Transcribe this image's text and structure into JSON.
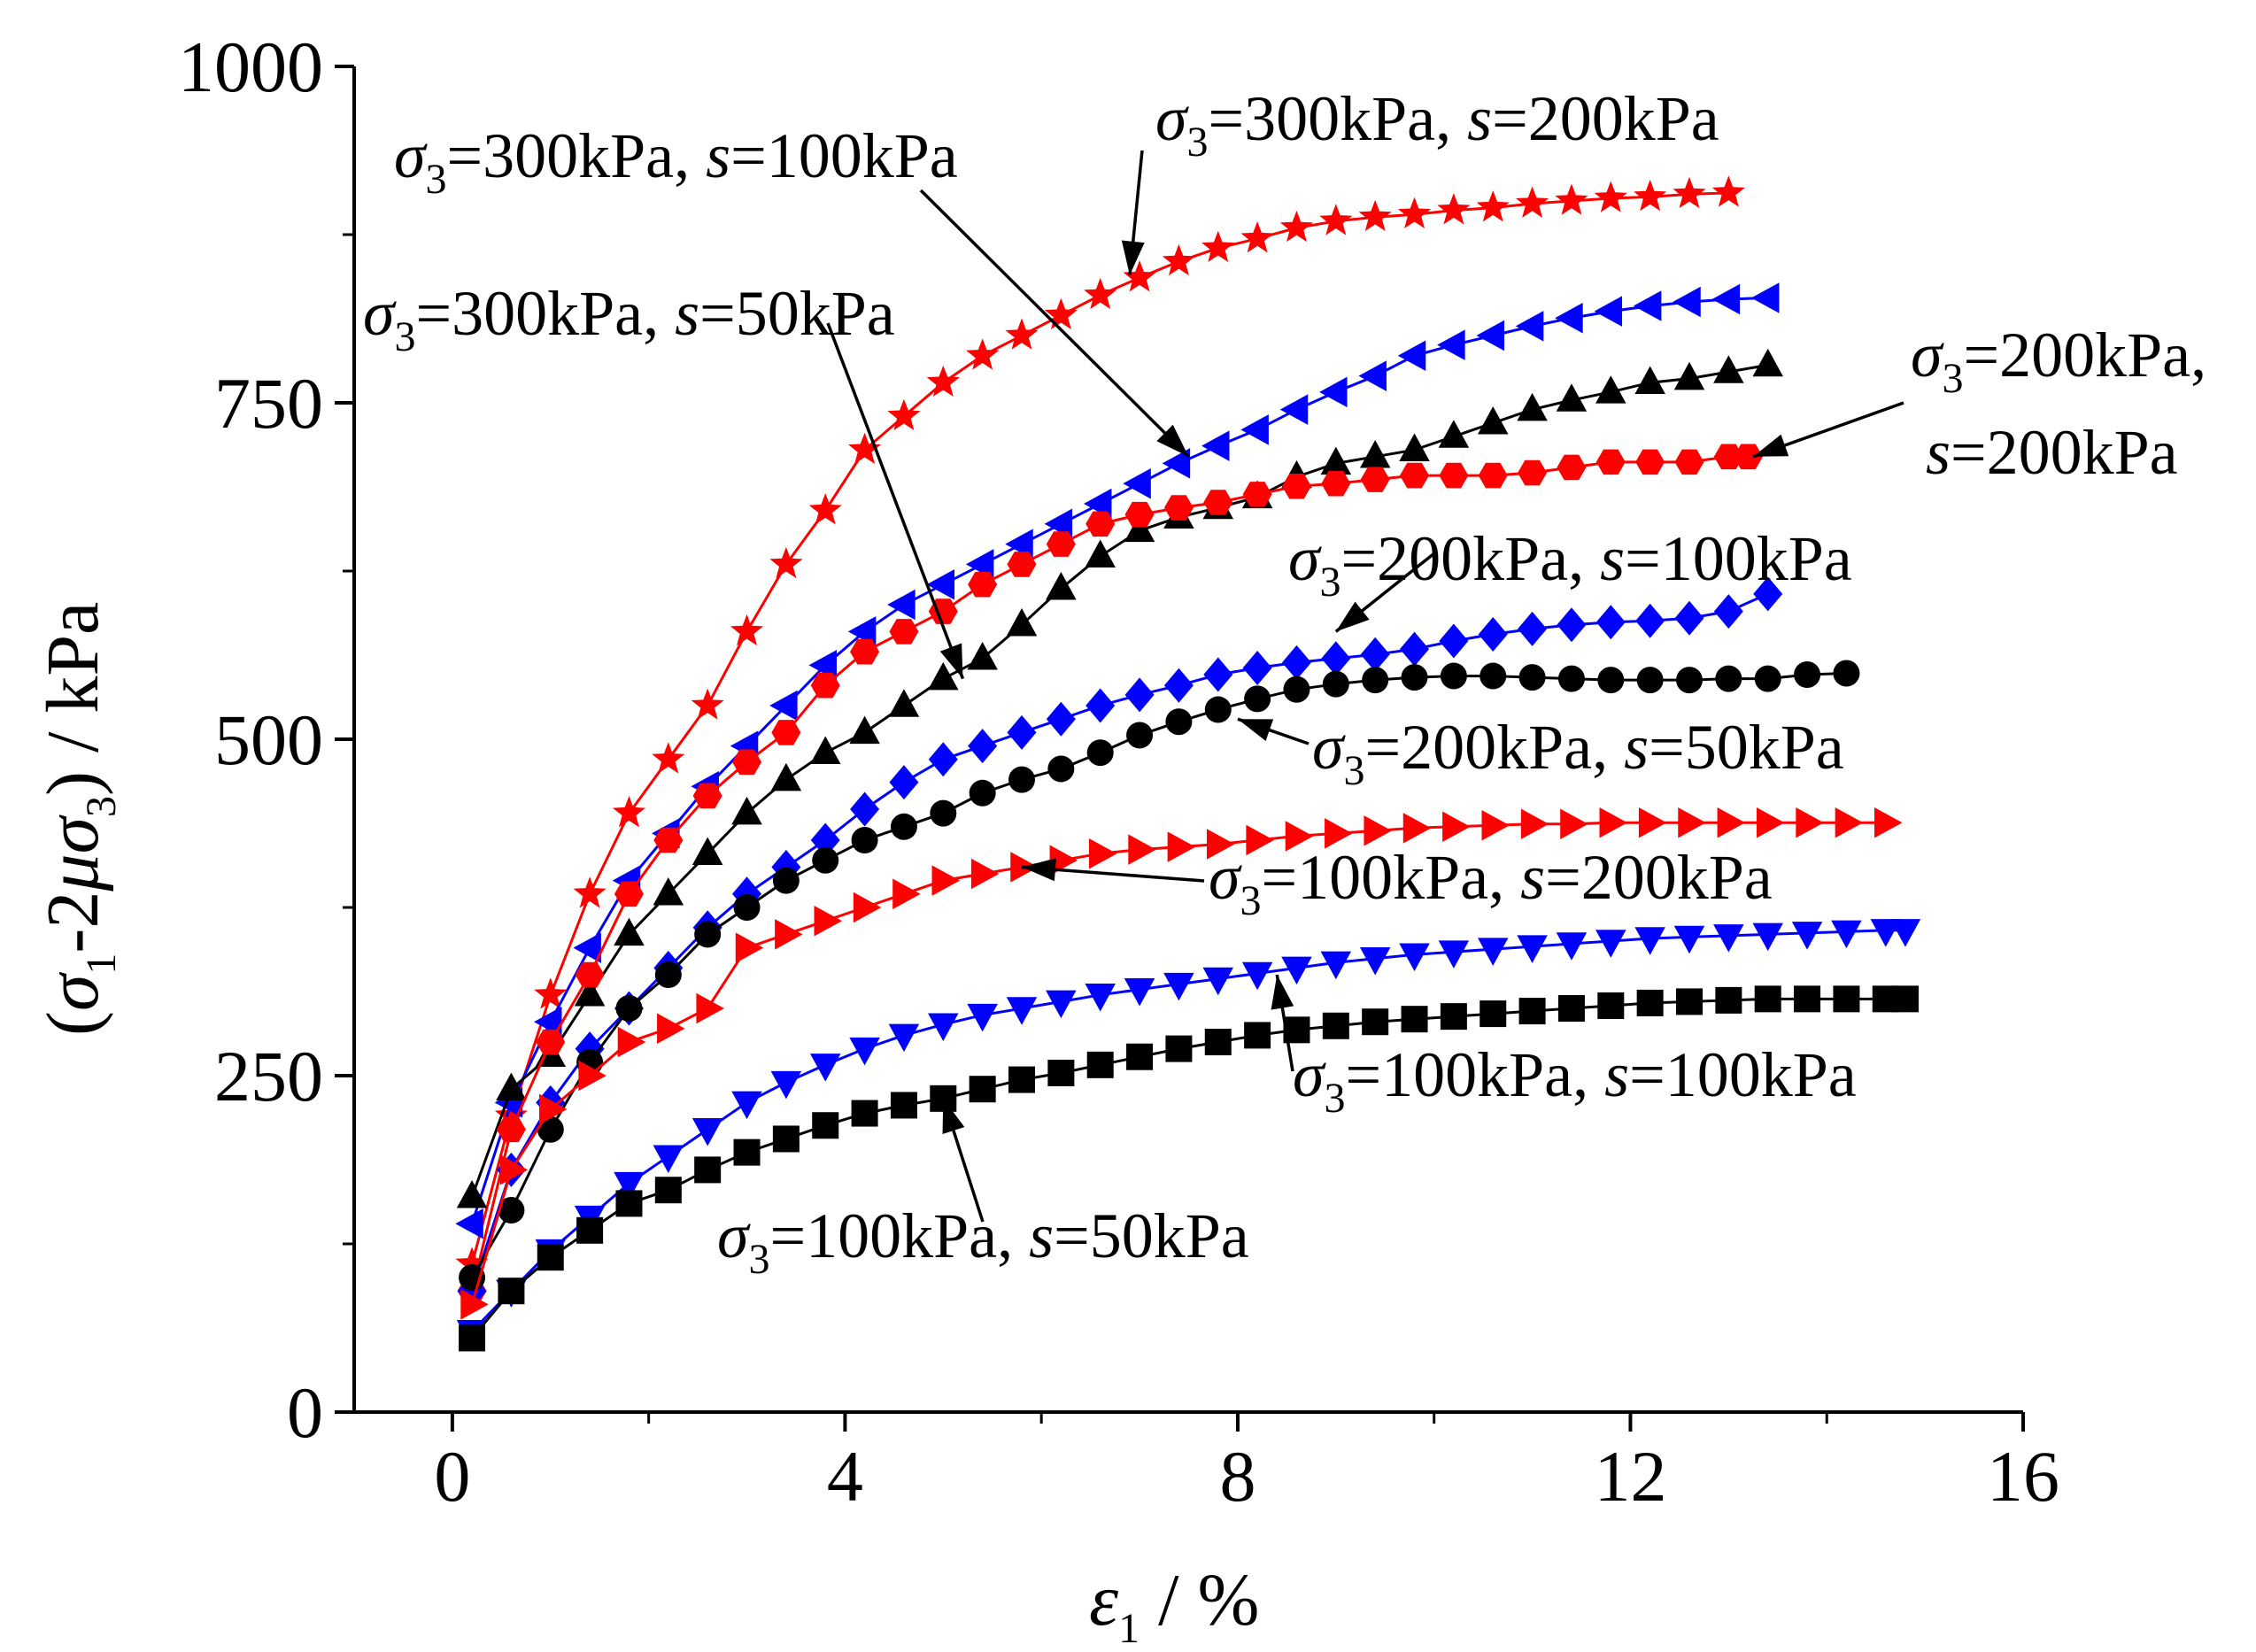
{
  "chart_data": {
    "type": "line",
    "title": "",
    "xlabel": {
      "symbol": "ε",
      "sub": "1",
      "unit": " / %"
    },
    "ylabel": {
      "open": "(",
      "s1": "σ",
      "s1sub": "1",
      "mid": "-2",
      "mu": "μ",
      "s3": "σ",
      "s3sub": "3",
      "close": ") / kPa"
    },
    "xlim": [
      -1,
      16
    ],
    "ylim": [
      0,
      1000
    ],
    "xticks": [
      0,
      4,
      8,
      12,
      16
    ],
    "yticks": [
      0,
      250,
      500,
      750,
      1000
    ],
    "grid": false,
    "colors": {
      "red": "#ff0000",
      "blue": "#0000ff",
      "black": "#000000"
    },
    "series": [
      {
        "name": "σ3=300kPa, s=200kPa",
        "color": "#ff0000",
        "marker": "star",
        "x": [
          0.2,
          0.6,
          1.0,
          1.4,
          1.8,
          2.2,
          2.6,
          3.0,
          3.4,
          3.8,
          4.2,
          4.6,
          5.0,
          5.4,
          5.8,
          6.2,
          6.6,
          7.0,
          7.4,
          7.8,
          8.2,
          8.6,
          9.0,
          9.4,
          9.8,
          10.2,
          10.6,
          11.0,
          11.4,
          11.8,
          12.2,
          12.6,
          13.0
        ],
        "y": [
          110,
          220,
          310,
          385,
          445,
          485,
          525,
          580,
          630,
          670,
          715,
          740,
          765,
          785,
          800,
          815,
          830,
          843,
          855,
          865,
          872,
          880,
          885,
          888,
          890,
          893,
          895,
          898,
          900,
          902,
          903,
          905,
          906
        ]
      },
      {
        "name": "σ3=300kPa, s=100kPa",
        "color": "#0000ff",
        "marker": "triangle-left",
        "x": [
          0.2,
          0.6,
          1.0,
          1.4,
          1.8,
          2.2,
          2.6,
          3.0,
          3.4,
          3.8,
          4.2,
          4.6,
          5.0,
          5.4,
          5.8,
          6.2,
          6.6,
          7.0,
          7.4,
          7.8,
          8.2,
          8.6,
          9.0,
          9.4,
          9.8,
          10.2,
          10.6,
          11.0,
          11.4,
          11.8,
          12.2,
          12.6,
          13.0,
          13.4
        ],
        "y": [
          140,
          230,
          290,
          345,
          395,
          430,
          465,
          495,
          525,
          555,
          580,
          600,
          615,
          630,
          645,
          660,
          675,
          690,
          705,
          718,
          730,
          745,
          758,
          770,
          785,
          793,
          800,
          807,
          813,
          818,
          822,
          825,
          827,
          828
        ]
      },
      {
        "name": "σ3=300kPa, s=50kPa",
        "color": "#000000",
        "marker": "triangle-up",
        "x": [
          0.2,
          0.6,
          1.0,
          1.4,
          1.8,
          2.2,
          2.6,
          3.0,
          3.4,
          3.8,
          4.2,
          4.6,
          5.0,
          5.4,
          5.8,
          6.2,
          6.6,
          7.0,
          7.4,
          7.8,
          8.2,
          8.6,
          9.0,
          9.4,
          9.8,
          10.2,
          10.6,
          11.0,
          11.4,
          11.8,
          12.2,
          12.6,
          13.0,
          13.4
        ],
        "y": [
          160,
          240,
          265,
          310,
          355,
          385,
          415,
          445,
          470,
          490,
          505,
          525,
          545,
          560,
          585,
          612,
          636,
          655,
          665,
          672,
          680,
          695,
          705,
          710,
          715,
          725,
          735,
          745,
          752,
          758,
          765,
          768,
          773,
          778
        ]
      },
      {
        "name": "σ3=200kPa, s=200kPa",
        "color": "#ff0000",
        "marker": "hexagon",
        "x": [
          0.2,
          0.6,
          1.0,
          1.4,
          1.8,
          2.2,
          2.6,
          3.0,
          3.4,
          3.8,
          4.2,
          4.6,
          5.0,
          5.4,
          5.8,
          6.2,
          6.6,
          7.0,
          7.4,
          7.8,
          8.2,
          8.6,
          9.0,
          9.4,
          9.8,
          10.2,
          10.6,
          11.0,
          11.4,
          11.8,
          12.2,
          12.6,
          13.0,
          13.2
        ],
        "y": [
          90,
          210,
          275,
          325,
          385,
          425,
          458,
          483,
          505,
          540,
          565,
          580,
          595,
          615,
          630,
          645,
          660,
          667,
          672,
          676,
          682,
          688,
          690,
          693,
          696,
          696,
          696,
          698,
          702,
          706,
          706,
          706,
          710,
          710
        ]
      },
      {
        "name": "σ3=200kPa, s=100kPa",
        "color": "#0000ff",
        "marker": "diamond",
        "x": [
          0.2,
          0.6,
          1.0,
          1.4,
          1.8,
          2.2,
          2.6,
          3.0,
          3.4,
          3.8,
          4.2,
          4.6,
          5.0,
          5.4,
          5.8,
          6.2,
          6.6,
          7.0,
          7.4,
          7.8,
          8.2,
          8.6,
          9.0,
          9.4,
          9.8,
          10.2,
          10.6,
          11.0,
          11.4,
          11.8,
          12.2,
          12.6,
          13.0,
          13.4
        ],
        "y": [
          90,
          180,
          230,
          270,
          300,
          330,
          360,
          385,
          405,
          425,
          448,
          468,
          485,
          495,
          505,
          515,
          525,
          533,
          540,
          548,
          553,
          557,
          560,
          563,
          567,
          573,
          578,
          582,
          585,
          587,
          588,
          590,
          595,
          608
        ]
      },
      {
        "name": "σ3=200kPa, s=50kPa",
        "color": "#000000",
        "marker": "circle",
        "x": [
          0.2,
          0.6,
          1.0,
          1.4,
          1.8,
          2.2,
          2.6,
          3.0,
          3.4,
          3.8,
          4.2,
          4.6,
          5.0,
          5.4,
          5.8,
          6.2,
          6.6,
          7.0,
          7.4,
          7.8,
          8.2,
          8.6,
          9.0,
          9.4,
          9.8,
          10.2,
          10.6,
          11.0,
          11.4,
          11.8,
          12.2,
          12.6,
          13.0,
          13.4,
          13.8,
          14.2
        ],
        "y": [
          100,
          150,
          210,
          260,
          300,
          325,
          355,
          375,
          395,
          410,
          425,
          435,
          445,
          460,
          470,
          478,
          490,
          503,
          513,
          522,
          530,
          537,
          541,
          544,
          546,
          547,
          547,
          546,
          545,
          544,
          544,
          544,
          545,
          545,
          548,
          549
        ]
      },
      {
        "name": "σ3=100kPa, s=200kPa",
        "color": "#ff0000",
        "marker": "triangle-right",
        "x": [
          0.2,
          0.6,
          1.0,
          1.4,
          1.8,
          2.2,
          2.6,
          3.0,
          3.4,
          3.8,
          4.2,
          4.6,
          5.0,
          5.4,
          5.8,
          6.2,
          6.6,
          7.0,
          7.4,
          7.8,
          8.2,
          8.6,
          9.0,
          9.4,
          9.8,
          10.2,
          10.6,
          11.0,
          11.4,
          11.8,
          12.2,
          12.6,
          13.0,
          13.4,
          13.8,
          14.2,
          14.6
        ],
        "y": [
          80,
          180,
          225,
          250,
          275,
          285,
          300,
          345,
          355,
          365,
          375,
          385,
          395,
          400,
          405,
          410,
          415,
          418,
          420,
          422,
          425,
          428,
          430,
          432,
          434,
          435,
          436,
          437,
          437,
          438,
          438,
          438,
          438,
          438,
          438,
          438,
          438
        ]
      },
      {
        "name": "σ3=100kPa, s=100kPa",
        "color": "#0000ff",
        "marker": "triangle-down",
        "x": [
          0.2,
          0.6,
          1.0,
          1.4,
          1.8,
          2.2,
          2.6,
          3.0,
          3.4,
          3.8,
          4.2,
          4.6,
          5.0,
          5.4,
          5.8,
          6.2,
          6.6,
          7.0,
          7.4,
          7.8,
          8.2,
          8.6,
          9.0,
          9.4,
          9.8,
          10.2,
          10.6,
          11.0,
          11.4,
          11.8,
          12.2,
          12.6,
          13.0,
          13.4,
          13.8,
          14.2,
          14.6,
          14.8
        ],
        "y": [
          60,
          90,
          120,
          145,
          170,
          190,
          210,
          230,
          245,
          258,
          270,
          280,
          288,
          295,
          300,
          305,
          310,
          314,
          318,
          322,
          326,
          330,
          334,
          337,
          340,
          342,
          344,
          346,
          348,
          350,
          352,
          353,
          354,
          355,
          356,
          357,
          358,
          358
        ]
      },
      {
        "name": "σ3=100kPa, s=50kPa",
        "color": "#000000",
        "marker": "square",
        "x": [
          0.2,
          0.6,
          1.0,
          1.4,
          1.8,
          2.2,
          2.6,
          3.0,
          3.4,
          3.8,
          4.2,
          4.6,
          5.0,
          5.4,
          5.8,
          6.2,
          6.6,
          7.0,
          7.4,
          7.8,
          8.2,
          8.6,
          9.0,
          9.4,
          9.8,
          10.2,
          10.6,
          11.0,
          11.4,
          11.8,
          12.2,
          12.6,
          13.0,
          13.4,
          13.8,
          14.2,
          14.6,
          14.8
        ],
        "y": [
          55,
          90,
          115,
          135,
          155,
          165,
          180,
          193,
          203,
          213,
          222,
          228,
          233,
          240,
          247,
          252,
          258,
          264,
          270,
          275,
          280,
          284,
          287,
          290,
          292,
          294,
          296,
          298,
          300,
          302,
          304,
          305,
          306,
          307,
          307,
          307,
          307,
          307
        ]
      }
    ],
    "annotations": [
      {
        "prefix": "σ",
        "sub": "3",
        "mid": "=300kPa, ",
        "s": "s",
        "rest": "=200kPa"
      },
      {
        "prefix": "σ",
        "sub": "3",
        "mid": "=300kPa, ",
        "s": "s",
        "rest": "=100kPa"
      },
      {
        "prefix": "σ",
        "sub": "3",
        "mid": "=300kPa, ",
        "s": "s",
        "rest": "=50kPa"
      },
      {
        "prefix": "σ",
        "sub": "3",
        "mid": "=200kPa,",
        "s": "s",
        "rest": "=200kPa"
      },
      {
        "prefix": "σ",
        "sub": "3",
        "mid": "=200kPa, ",
        "s": "s",
        "rest": "=100kPa"
      },
      {
        "prefix": "σ",
        "sub": "3",
        "mid": "=200kPa, ",
        "s": "s",
        "rest": "=50kPa"
      },
      {
        "prefix": "σ",
        "sub": "3",
        "mid": "=100kPa, ",
        "s": "s",
        "rest": "=200kPa"
      },
      {
        "prefix": "σ",
        "sub": "3",
        "mid": "=100kPa, ",
        "s": "s",
        "rest": "=100kPa"
      },
      {
        "prefix": "σ",
        "sub": "3",
        "mid": "=100kPa, ",
        "s": "s",
        "rest": "=50kPa"
      }
    ]
  }
}
